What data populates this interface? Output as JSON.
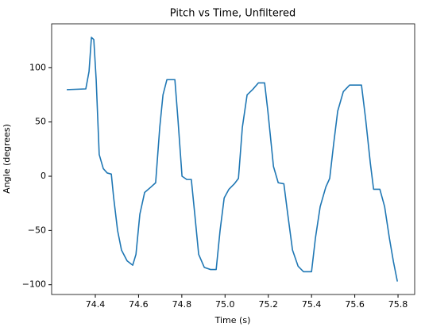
{
  "chart_data": {
    "type": "line",
    "title": "Pitch vs Time, Unfiltered",
    "xlabel": "Time (s)",
    "ylabel": "Angle (degrees)",
    "x": [
      74.268,
      74.356,
      74.371,
      74.382,
      74.393,
      74.404,
      74.418,
      74.437,
      74.455,
      74.474,
      74.485,
      74.503,
      74.521,
      74.547,
      74.573,
      74.588,
      74.606,
      74.628,
      74.657,
      74.679,
      74.698,
      74.713,
      74.731,
      74.768,
      74.782,
      74.801,
      74.823,
      74.844,
      74.86,
      74.878,
      74.904,
      74.933,
      74.959,
      74.977,
      74.996,
      75.018,
      75.043,
      75.062,
      75.08,
      75.102,
      75.128,
      75.154,
      75.183,
      75.198,
      75.224,
      75.246,
      75.272,
      75.29,
      75.312,
      75.338,
      75.363,
      75.4,
      75.418,
      75.44,
      75.466,
      75.484,
      75.503,
      75.521,
      75.547,
      75.576,
      75.631,
      75.65,
      75.672,
      75.687,
      75.716,
      75.738,
      75.76,
      75.779,
      75.797
    ],
    "series": [
      {
        "name": "Pitch",
        "color": "#1f77b4",
        "values": [
          79.8,
          80.5,
          96.6,
          128,
          126,
          89,
          20,
          7,
          3,
          2,
          -20,
          -50,
          -68,
          -78,
          -82,
          -72,
          -35,
          -15,
          -10,
          -6,
          45,
          75,
          89,
          89,
          53,
          0,
          -3,
          -3,
          -35,
          -72,
          -84,
          -86,
          -86,
          -50,
          -20,
          -12,
          -7,
          -2,
          45,
          75,
          80,
          86,
          86,
          60,
          9,
          -6,
          -7,
          -35,
          -68,
          -83,
          -88,
          -88,
          -57,
          -28,
          -10,
          -2,
          31,
          60,
          78,
          84,
          84,
          53,
          12,
          -12,
          -12,
          -28,
          -57,
          -79,
          -97
        ]
      }
    ],
    "xlim": [
      74.198,
      75.877
    ],
    "ylim": [
      -109,
      140.5
    ],
    "xticks": [
      74.4,
      74.6,
      74.8,
      {
        "value": 75,
        "label": "75.0"
      },
      75.2,
      75.4,
      75.6,
      75.8
    ],
    "yticks": [
      {
        "value": -100,
        "label": "−100"
      },
      {
        "value": -50,
        "label": "−50"
      },
      0,
      50,
      100
    ],
    "grid": false
  }
}
